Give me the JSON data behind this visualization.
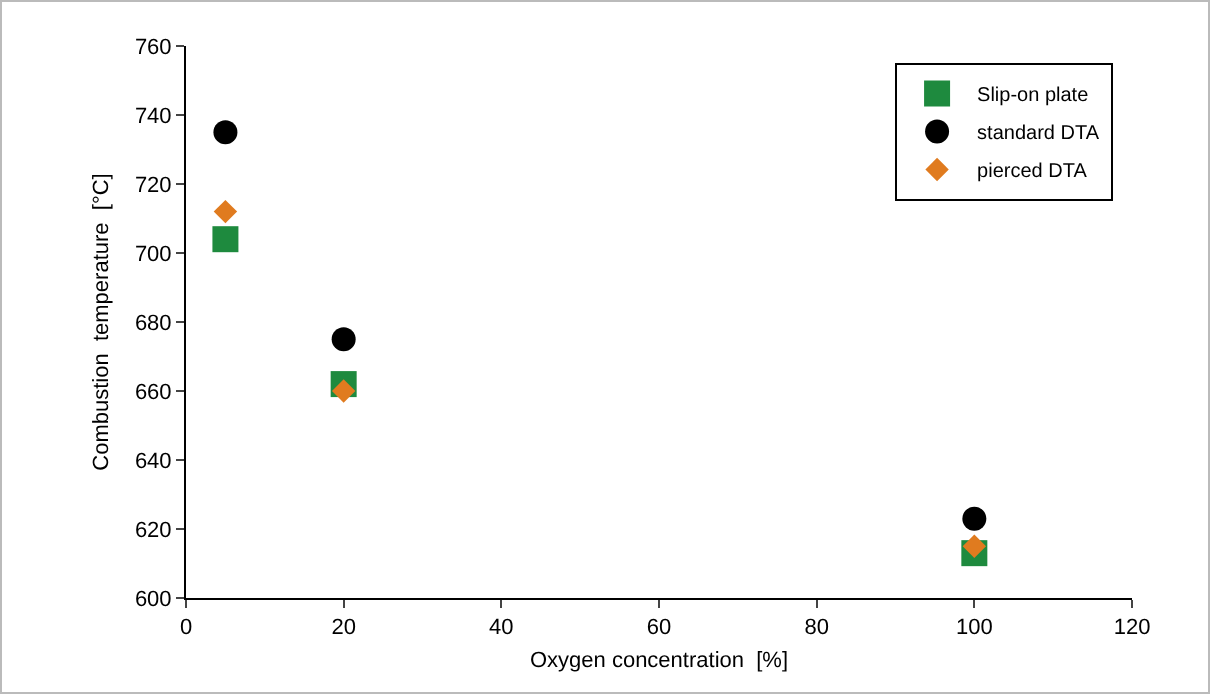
{
  "chart_data": {
    "type": "scatter",
    "xlabel": "Oxygen concentration  [%]",
    "ylabel": "Combustion  temperature  [°C]",
    "x": [
      5,
      20,
      100
    ],
    "series": [
      {
        "name": "Slip-on plate",
        "color": "#1e8a3e",
        "marker": "square",
        "values": [
          704,
          662,
          613
        ]
      },
      {
        "name": "standard DTA",
        "color": "#000000",
        "marker": "circle",
        "values": [
          735,
          675,
          623
        ]
      },
      {
        "name": "pierced DTA",
        "color": "#e07b1f",
        "marker": "diamond",
        "values": [
          712,
          660,
          615
        ]
      }
    ],
    "xlim": [
      0,
      120
    ],
    "xticks": [
      0,
      20,
      40,
      60,
      80,
      100,
      120
    ],
    "ylim": [
      600,
      760
    ],
    "yticks": [
      600,
      620,
      640,
      660,
      680,
      700,
      720,
      740,
      760
    ],
    "grid": false,
    "legend": "top right"
  }
}
